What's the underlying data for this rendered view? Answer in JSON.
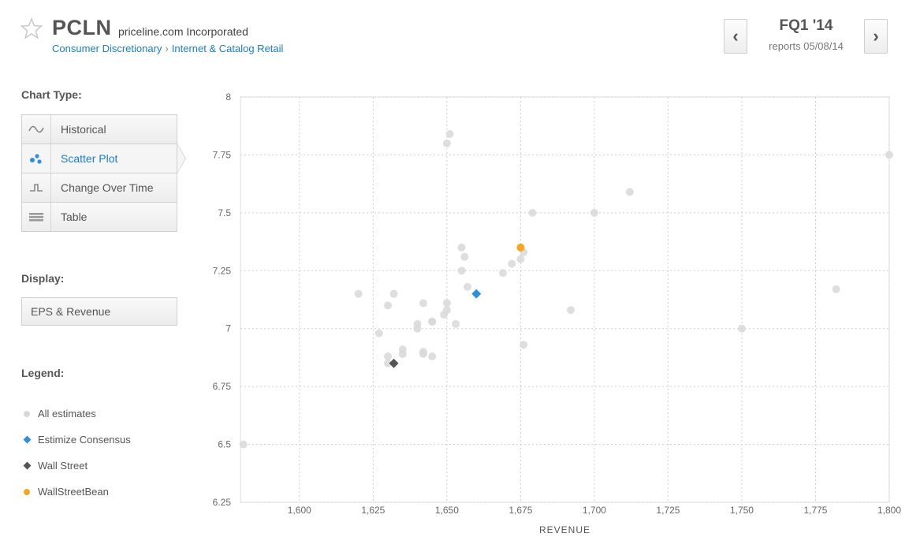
{
  "header": {
    "ticker": "PCLN",
    "company": "priceline.com Incorporated",
    "breadcrumb": [
      "Consumer Discretionary",
      "Internet & Catalog Retail"
    ],
    "breadcrumb_sep": "›",
    "quarter": "FQ1 '14",
    "reports": "reports 05/08/14",
    "prev_label": "‹",
    "next_label": "›"
  },
  "sidebar": {
    "chart_type_title": "Chart Type:",
    "chart_types": [
      {
        "label": "Historical",
        "icon": "wave-icon",
        "active": false
      },
      {
        "label": "Scatter Plot",
        "icon": "scatter-icon",
        "active": true
      },
      {
        "label": "Change Over Time",
        "icon": "step-icon",
        "active": false
      },
      {
        "label": "Table",
        "icon": "table-icon",
        "active": false
      }
    ],
    "display_title": "Display:",
    "display_value": "EPS & Revenue",
    "legend_title": "Legend:",
    "legend": [
      {
        "label": "All estimates",
        "color": "#d8d8d8",
        "shape": "circle"
      },
      {
        "label": "Estimize Consensus",
        "color": "#2f8fdd",
        "shape": "diamond"
      },
      {
        "label": "Wall Street",
        "color": "#555555",
        "shape": "diamond"
      },
      {
        "label": "WallStreetBean",
        "color": "#f5a623",
        "shape": "circle"
      }
    ]
  },
  "colors": {
    "accent": "#1a7dc4",
    "estimate": "#d8d8d8",
    "consensus": "#2f8fdd",
    "wallstreet": "#555555",
    "bean": "#f5a623"
  },
  "chart_data": {
    "type": "scatter",
    "xlabel": "REVENUE",
    "ylabel": "",
    "xlim": [
      1580,
      1800
    ],
    "ylim": [
      6.25,
      8
    ],
    "x_ticks": [
      1600,
      1625,
      1650,
      1675,
      1700,
      1725,
      1750,
      1775,
      1800
    ],
    "x_tick_labels": [
      "1,600",
      "1,625",
      "1,650",
      "1,675",
      "1,700",
      "1,725",
      "1,750",
      "1,775",
      "1,800"
    ],
    "y_ticks": [
      6.25,
      6.5,
      6.75,
      7,
      7.25,
      7.5,
      7.75,
      8
    ],
    "y_tick_labels": [
      "6.25",
      "6.5",
      "6.75",
      "7",
      "7.25",
      "7.5",
      "7.75",
      "8"
    ],
    "grid": true,
    "series": [
      {
        "name": "All estimates",
        "marker": "circle",
        "color": "#d8d8d8",
        "points": [
          [
            1581,
            6.5
          ],
          [
            1620,
            7.15
          ],
          [
            1627,
            6.98
          ],
          [
            1630,
            7.1
          ],
          [
            1630,
            6.88
          ],
          [
            1630,
            6.85
          ],
          [
            1632,
            7.15
          ],
          [
            1635,
            6.91
          ],
          [
            1635,
            6.89
          ],
          [
            1640,
            7.02
          ],
          [
            1640,
            7.0
          ],
          [
            1642,
            7.11
          ],
          [
            1642,
            6.9
          ],
          [
            1642,
            6.89
          ],
          [
            1645,
            7.03
          ],
          [
            1645,
            7.03
          ],
          [
            1645,
            6.88
          ],
          [
            1649,
            7.06
          ],
          [
            1650,
            7.11
          ],
          [
            1650,
            7.08
          ],
          [
            1650,
            7.8
          ],
          [
            1651,
            7.84
          ],
          [
            1653,
            7.02
          ],
          [
            1655,
            7.35
          ],
          [
            1655,
            7.25
          ],
          [
            1656,
            7.31
          ],
          [
            1657,
            7.18
          ],
          [
            1669,
            7.24
          ],
          [
            1672,
            7.28
          ],
          [
            1675,
            7.3
          ],
          [
            1676,
            7.33
          ],
          [
            1676,
            6.93
          ],
          [
            1679,
            7.5
          ],
          [
            1692,
            7.08
          ],
          [
            1700,
            7.5
          ],
          [
            1712,
            7.59
          ],
          [
            1750,
            7.0
          ],
          [
            1782,
            7.17
          ],
          [
            1800,
            7.75
          ]
        ]
      },
      {
        "name": "Estimize Consensus",
        "marker": "diamond",
        "color": "#2f8fdd",
        "points": [
          [
            1660,
            7.15
          ]
        ]
      },
      {
        "name": "Wall Street",
        "marker": "diamond",
        "color": "#555555",
        "points": [
          [
            1632,
            6.85
          ]
        ]
      },
      {
        "name": "WallStreetBean",
        "marker": "circle",
        "color": "#f5a623",
        "points": [
          [
            1675,
            7.35
          ]
        ]
      }
    ]
  }
}
